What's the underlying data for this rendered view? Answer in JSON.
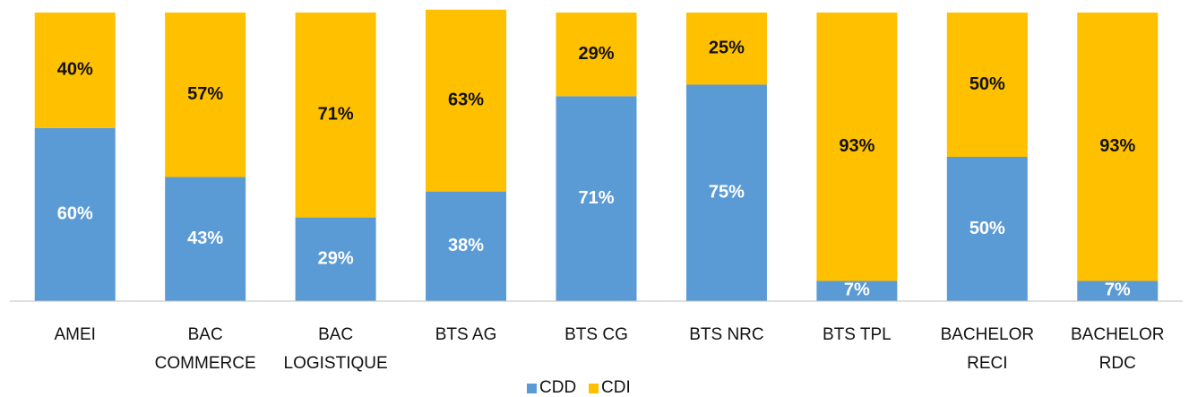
{
  "chart_data": {
    "type": "stacked_bar",
    "categories": [
      "AMEI",
      "BAC\nCOMMERCE",
      "BAC\nLOGISTIQUE",
      "BTS AG",
      "BTS CG",
      "BTS NRC",
      "BTS TPL",
      "BACHELOR\nRECI",
      "BACHELOR\nRDC"
    ],
    "series": [
      {
        "name": "CDD",
        "color": "#5b9bd5",
        "values": [
          60,
          43,
          29,
          38,
          71,
          75,
          7,
          50,
          7
        ],
        "value_labels": [
          "60%",
          "43%",
          "29%",
          "38%",
          "71%",
          "75%",
          "7%",
          "50%",
          "7%"
        ]
      },
      {
        "name": "CDI",
        "color": "#ffc000",
        "values": [
          40,
          57,
          71,
          63,
          29,
          25,
          93,
          50,
          93
        ],
        "value_labels": [
          "40%",
          "57%",
          "71%",
          "63%",
          "29%",
          "25%",
          "93%",
          "50%",
          "93%"
        ]
      }
    ],
    "ylim": [
      0,
      100
    ],
    "legend": "bottom"
  }
}
